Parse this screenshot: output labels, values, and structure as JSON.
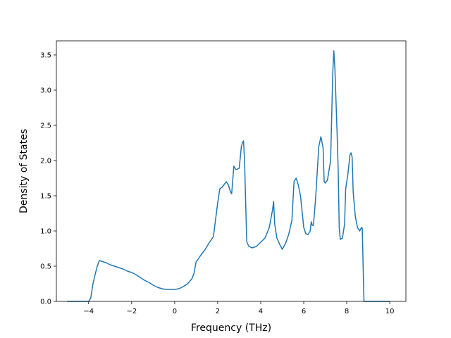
{
  "chart_data": {
    "type": "line",
    "title": "",
    "xlabel": "Frequency (THz)",
    "ylabel": "Density of States",
    "xlim": [
      -5.5,
      10.75
    ],
    "ylim": [
      0.0,
      3.7
    ],
    "xticks": [
      -4,
      -2,
      0,
      2,
      4,
      6,
      8,
      10
    ],
    "xtick_labels": [
      "−4",
      "−2",
      "0",
      "2",
      "4",
      "6",
      "8",
      "10"
    ],
    "yticks": [
      0.0,
      0.5,
      1.0,
      1.5,
      2.0,
      2.5,
      3.0,
      3.5
    ],
    "ytick_labels": [
      "0.0",
      "0.5",
      "1.0",
      "1.5",
      "2.0",
      "2.5",
      "3.0",
      "3.5"
    ],
    "grid": false,
    "legend": "none",
    "colors": {
      "line": "#1f77b4"
    },
    "series": [
      {
        "x": [
          -5.0,
          -4.5,
          -4.0,
          -3.9,
          -3.8,
          -3.7,
          -3.6,
          -3.5,
          -3.4,
          -3.3,
          -3.2,
          -3.0,
          -2.8,
          -2.6,
          -2.4,
          -2.2,
          -2.0,
          -1.8,
          -1.6,
          -1.4,
          -1.2,
          -1.0,
          -0.8,
          -0.6,
          -0.4,
          -0.2,
          0.0,
          0.2,
          0.4,
          0.6,
          0.8,
          0.9,
          1.0,
          1.05,
          1.2,
          1.4,
          1.6,
          1.8,
          2.0,
          2.1,
          2.2,
          2.4,
          2.5,
          2.6,
          2.65,
          2.75,
          2.85,
          3.0,
          3.1,
          3.15,
          3.2,
          3.25,
          3.3,
          3.35,
          3.45,
          3.6,
          3.8,
          4.0,
          4.2,
          4.4,
          4.55,
          4.6,
          4.65,
          4.75,
          4.9,
          5.0,
          5.15,
          5.3,
          5.45,
          5.55,
          5.6,
          5.65,
          5.75,
          5.85,
          5.95,
          6.0,
          6.1,
          6.2,
          6.3,
          6.35,
          6.4,
          6.45,
          6.55,
          6.7,
          6.8,
          6.9,
          6.95,
          7.0,
          7.1,
          7.25,
          7.35,
          7.4,
          7.45,
          7.55,
          7.6,
          7.65,
          7.7,
          7.8,
          7.9,
          7.95,
          8.05,
          8.15,
          8.2,
          8.25,
          8.3,
          8.4,
          8.5,
          8.6,
          8.65,
          8.7,
          8.72,
          8.8,
          9.0,
          9.5,
          10.0
        ],
        "y": [
          0.0,
          0.0,
          0.0,
          0.05,
          0.25,
          0.38,
          0.5,
          0.58,
          0.57,
          0.56,
          0.55,
          0.52,
          0.5,
          0.48,
          0.46,
          0.43,
          0.41,
          0.38,
          0.34,
          0.3,
          0.27,
          0.23,
          0.2,
          0.18,
          0.17,
          0.17,
          0.17,
          0.18,
          0.21,
          0.25,
          0.32,
          0.4,
          0.57,
          0.58,
          0.65,
          0.73,
          0.83,
          0.92,
          1.4,
          1.6,
          1.62,
          1.7,
          1.65,
          1.55,
          1.53,
          1.92,
          1.87,
          1.89,
          2.2,
          2.25,
          2.28,
          2.0,
          1.4,
          0.85,
          0.78,
          0.76,
          0.78,
          0.84,
          0.9,
          1.05,
          1.3,
          1.42,
          1.1,
          0.9,
          0.8,
          0.74,
          0.82,
          0.95,
          1.15,
          1.7,
          1.73,
          1.75,
          1.65,
          1.5,
          1.2,
          1.05,
          0.96,
          0.95,
          1.0,
          1.13,
          1.08,
          1.08,
          1.45,
          2.2,
          2.34,
          2.18,
          1.7,
          1.68,
          1.72,
          2.0,
          3.25,
          3.56,
          3.3,
          2.4,
          1.9,
          1.05,
          0.88,
          0.9,
          1.1,
          1.6,
          1.8,
          2.08,
          2.11,
          2.05,
          1.55,
          1.2,
          1.05,
          1.0,
          1.03,
          1.05,
          1.04,
          0.0,
          0.0,
          0.0,
          0.0
        ]
      }
    ]
  }
}
